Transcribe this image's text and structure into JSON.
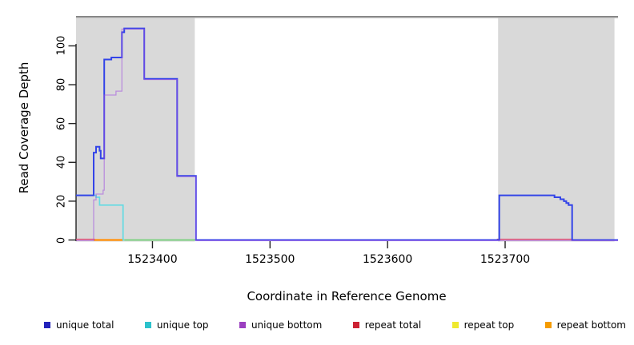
{
  "chart_data": {
    "type": "line",
    "title": "",
    "xlabel": "Coordinate in Reference Genome",
    "ylabel": "Read Coverage Depth",
    "xlim": [
      1523335,
      1523796
    ],
    "ylim": [
      0,
      115.2
    ],
    "grid": false,
    "x_ticks": [
      {
        "value": 1523400,
        "label": "1523400"
      },
      {
        "value": 1523500,
        "label": "1523500"
      },
      {
        "value": 1523600,
        "label": "1523600"
      },
      {
        "value": 1523700,
        "label": "1523700"
      }
    ],
    "y_ticks": [
      {
        "value": 0,
        "label": "0"
      },
      {
        "value": 20,
        "label": "20"
      },
      {
        "value": 40,
        "label": "40"
      },
      {
        "value": 60,
        "label": "60"
      },
      {
        "value": 80,
        "label": "80"
      },
      {
        "value": 100,
        "label": "100"
      }
    ],
    "shaded_regions": [
      {
        "x1": 1523335,
        "x2": 1523436,
        "color": "#d9d9d9"
      },
      {
        "x1": 1523694,
        "x2": 1523793,
        "color": "#d9d9d9"
      }
    ],
    "boundary_line": {
      "y": 115,
      "color": "#828282"
    },
    "series": [
      {
        "name": "repeat top",
        "color": "#7ed184",
        "segments": [
          [
            [
              1523376,
              0
            ],
            [
              1523437,
              0
            ]
          ]
        ]
      },
      {
        "name": "repeat bottom",
        "color": "#ff9517",
        "segments": [
          [
            [
              1523350,
              0
            ],
            [
              1523375,
              0
            ]
          ]
        ]
      },
      {
        "name": "repeat total",
        "color": "#e25577",
        "segments": [
          [
            [
              1523335,
              0
            ],
            [
              1523351,
              0
            ]
          ],
          [
            [
              1523693,
              0
            ],
            [
              1523757,
              0
            ]
          ]
        ]
      },
      {
        "name": "unique top",
        "color": "#63dbe3",
        "segments": [
          [
            [
              1523335,
              23
            ],
            [
              1523352,
              23
            ],
            [
              1523352,
              22
            ],
            [
              1523355,
              22
            ],
            [
              1523355,
              18
            ],
            [
              1523375,
              18
            ],
            [
              1523375,
              0
            ],
            [
              1523376,
              0
            ]
          ]
        ]
      },
      {
        "name": "unique total",
        "color": "#3344e8",
        "segments": [
          [
            [
              1523335,
              23
            ],
            [
              1523350,
              23
            ],
            [
              1523350,
              45
            ],
            [
              1523352,
              45
            ],
            [
              1523352,
              48
            ],
            [
              1523355,
              48
            ],
            [
              1523355,
              46
            ],
            [
              1523356,
              46
            ],
            [
              1523356,
              42
            ],
            [
              1523359,
              42
            ],
            [
              1523359,
              93
            ],
            [
              1523365,
              93
            ],
            [
              1523365,
              94
            ],
            [
              1523374,
              94
            ],
            [
              1523374,
              107
            ],
            [
              1523376,
              107
            ],
            [
              1523376,
              109
            ],
            [
              1523393,
              109
            ],
            [
              1523393,
              83
            ],
            [
              1523421,
              83
            ],
            [
              1523421,
              33
            ],
            [
              1523437,
              33
            ],
            [
              1523437,
              0
            ],
            [
              1523695,
              0
            ],
            [
              1523695,
              23
            ],
            [
              1523742,
              23
            ],
            [
              1523742,
              22
            ],
            [
              1523747,
              22
            ],
            [
              1523747,
              21
            ],
            [
              1523750,
              21
            ],
            [
              1523750,
              20
            ],
            [
              1523752,
              20
            ],
            [
              1523752,
              19
            ],
            [
              1523754,
              19
            ],
            [
              1523754,
              18
            ],
            [
              1523757,
              18
            ],
            [
              1523757,
              0
            ],
            [
              1523796,
              0
            ]
          ]
        ]
      },
      {
        "name": "unique bottom",
        "color": "#a050e0",
        "segments": [
          [
            [
              1523335,
              0
            ],
            [
              1523350,
              0
            ],
            [
              1523350,
              21
            ],
            [
              1523352,
              21
            ],
            [
              1523352,
              24
            ],
            [
              1523358,
              24
            ],
            [
              1523358,
              26
            ],
            [
              1523359,
              26
            ],
            [
              1523359,
              75
            ],
            [
              1523369,
              75
            ],
            [
              1523369,
              77
            ],
            [
              1523374,
              77
            ],
            [
              1523374,
              109
            ],
            [
              1523393,
              109
            ],
            [
              1523393,
              83
            ],
            [
              1523421,
              83
            ],
            [
              1523421,
              33
            ],
            [
              1523437,
              33
            ],
            [
              1523437,
              0
            ],
            [
              1523796,
              0
            ]
          ]
        ]
      }
    ],
    "legend": {
      "position": "bottom",
      "items": [
        {
          "label": "unique total",
          "color": "#2222bb"
        },
        {
          "label": "unique top",
          "color": "#2cc2cc"
        },
        {
          "label": "unique bottom",
          "color": "#9b3fc0"
        },
        {
          "label": "repeat total",
          "color": "#cc2233"
        },
        {
          "label": "repeat top",
          "color": "#efe92e"
        },
        {
          "label": "repeat bottom",
          "color": "#f59b00"
        }
      ]
    }
  }
}
